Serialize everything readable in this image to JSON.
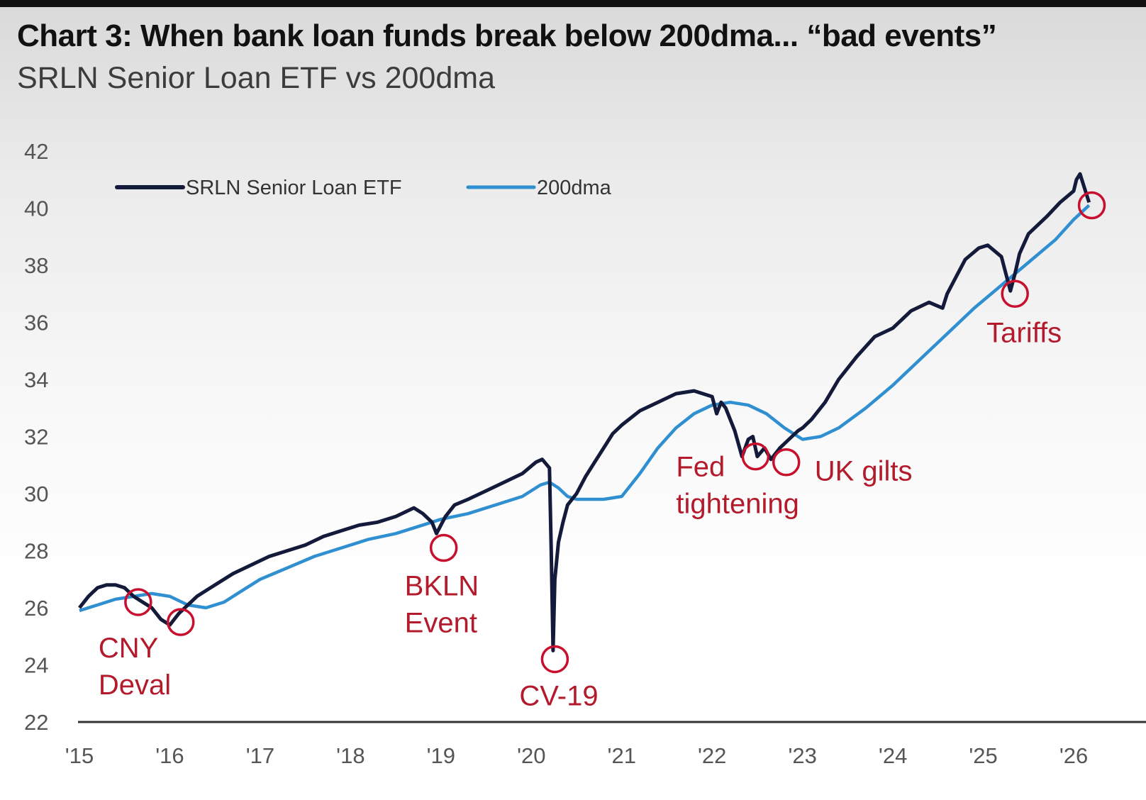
{
  "title": "Chart 3: When bank loan funds break below 200dma... “bad events”",
  "subtitle": "SRLN Senior Loan ETF vs 200dma",
  "colors": {
    "etf": "#141a3a",
    "dma": "#2f8fd0",
    "annotation": "#b31b2c",
    "circle": "#c8102e"
  },
  "chart_data": {
    "type": "line",
    "title": "Chart 3: When bank loan funds break below 200dma... “bad events”",
    "subtitle": "SRLN Senior Loan ETF vs 200dma",
    "ylim": [
      22,
      42
    ],
    "xlim": [
      2015,
      2026.8
    ],
    "yticks": [
      "22",
      "24",
      "26",
      "28",
      "30",
      "32",
      "34",
      "36",
      "38",
      "40",
      "42"
    ],
    "yticks_values": [
      22,
      24,
      26,
      28,
      30,
      32,
      34,
      36,
      38,
      40,
      42
    ],
    "xticks": [
      "'15",
      "'16",
      "'17",
      "'18",
      "'19",
      "'20",
      "'21",
      "'22",
      "'23",
      "'24",
      "'25",
      "'26"
    ],
    "xticks_values": [
      2015,
      2016,
      2017,
      2018,
      2019,
      2020,
      2021,
      2022,
      2023,
      2024,
      2025,
      2026
    ],
    "legend_position": "top-left",
    "grid": false,
    "series": [
      {
        "name": "SRLN Senior Loan ETF",
        "x": [
          2015.0,
          2015.1,
          2015.2,
          2015.3,
          2015.4,
          2015.5,
          2015.6,
          2015.7,
          2015.8,
          2015.9,
          2016.0,
          2016.05,
          2016.1,
          2016.2,
          2016.3,
          2016.4,
          2016.5,
          2016.7,
          2016.9,
          2017.1,
          2017.3,
          2017.5,
          2017.7,
          2017.9,
          2018.1,
          2018.3,
          2018.5,
          2018.7,
          2018.8,
          2018.9,
          2018.95,
          2019.0,
          2019.05,
          2019.15,
          2019.3,
          2019.5,
          2019.7,
          2019.9,
          2020.05,
          2020.12,
          2020.2,
          2020.22,
          2020.24,
          2020.26,
          2020.3,
          2020.35,
          2020.4,
          2020.5,
          2020.6,
          2020.7,
          2020.8,
          2020.9,
          2021.0,
          2021.2,
          2021.4,
          2021.6,
          2021.8,
          2022.0,
          2022.05,
          2022.1,
          2022.15,
          2022.25,
          2022.33,
          2022.4,
          2022.45,
          2022.5,
          2022.58,
          2022.65,
          2022.75,
          2022.85,
          2022.95,
          2023.0,
          2023.1,
          2023.25,
          2023.4,
          2023.6,
          2023.8,
          2024.0,
          2024.2,
          2024.4,
          2024.55,
          2024.6,
          2024.7,
          2024.8,
          2024.95,
          2025.05,
          2025.2,
          2025.3,
          2025.35,
          2025.4,
          2025.5,
          2025.7,
          2025.85,
          2026.0,
          2026.03,
          2026.07,
          2026.12,
          2026.17
        ],
        "y": [
          26.0,
          26.4,
          26.7,
          26.8,
          26.8,
          26.7,
          26.4,
          26.2,
          26.0,
          25.6,
          25.4,
          25.6,
          25.8,
          26.1,
          26.4,
          26.6,
          26.8,
          27.2,
          27.5,
          27.8,
          28.0,
          28.2,
          28.5,
          28.7,
          28.9,
          29.0,
          29.2,
          29.5,
          29.3,
          29.0,
          28.6,
          28.9,
          29.2,
          29.6,
          29.8,
          30.1,
          30.4,
          30.7,
          31.1,
          31.2,
          30.9,
          28.0,
          24.5,
          27.0,
          28.3,
          29.0,
          29.6,
          30.0,
          30.6,
          31.1,
          31.6,
          32.1,
          32.4,
          32.9,
          33.2,
          33.5,
          33.6,
          33.4,
          32.8,
          33.2,
          33.0,
          32.2,
          31.3,
          31.9,
          32.0,
          31.3,
          31.6,
          31.2,
          31.6,
          31.9,
          32.2,
          32.3,
          32.6,
          33.2,
          34.0,
          34.8,
          35.5,
          35.8,
          36.4,
          36.7,
          36.5,
          37.0,
          37.6,
          38.2,
          38.6,
          38.7,
          38.3,
          37.1,
          37.7,
          38.4,
          39.1,
          39.7,
          40.2,
          40.6,
          41.0,
          41.2,
          40.7,
          40.2
        ]
      },
      {
        "name": "200dma",
        "x": [
          2015.0,
          2015.2,
          2015.4,
          2015.6,
          2015.8,
          2016.0,
          2016.2,
          2016.4,
          2016.6,
          2016.8,
          2017.0,
          2017.3,
          2017.6,
          2017.9,
          2018.2,
          2018.5,
          2018.8,
          2019.0,
          2019.3,
          2019.6,
          2019.9,
          2020.1,
          2020.2,
          2020.3,
          2020.4,
          2020.5,
          2020.6,
          2020.8,
          2021.0,
          2021.2,
          2021.4,
          2021.6,
          2021.8,
          2022.0,
          2022.2,
          2022.4,
          2022.6,
          2022.8,
          2023.0,
          2023.2,
          2023.4,
          2023.7,
          2024.0,
          2024.3,
          2024.6,
          2024.9,
          2025.2,
          2025.5,
          2025.8,
          2026.0,
          2026.17
        ],
        "y": [
          25.9,
          26.1,
          26.3,
          26.4,
          26.5,
          26.4,
          26.1,
          26.0,
          26.2,
          26.6,
          27.0,
          27.4,
          27.8,
          28.1,
          28.4,
          28.6,
          28.9,
          29.1,
          29.3,
          29.6,
          29.9,
          30.3,
          30.4,
          30.2,
          29.9,
          29.8,
          29.8,
          29.8,
          29.9,
          30.7,
          31.6,
          32.3,
          32.8,
          33.1,
          33.2,
          33.1,
          32.8,
          32.3,
          31.9,
          32.0,
          32.3,
          33.0,
          33.8,
          34.7,
          35.6,
          36.5,
          37.3,
          38.1,
          38.9,
          39.6,
          40.1
        ]
      }
    ],
    "annotations": [
      {
        "label": "CNY",
        "label2": "Deval",
        "x": 2015.65,
        "y": 26.2
      },
      {
        "label": "",
        "label2": "",
        "x": 2016.12,
        "y": 25.5
      },
      {
        "label": "BKLN",
        "label2": "Event",
        "x": 2019.03,
        "y": 28.1
      },
      {
        "label": "CV-19",
        "label2": "",
        "x": 2020.26,
        "y": 24.2
      },
      {
        "label": "Fed",
        "label2": "tightening",
        "x": 2022.48,
        "y": 31.3
      },
      {
        "label": "UK gilts",
        "label2": "",
        "x": 2022.82,
        "y": 31.1
      },
      {
        "label": "Tariffs",
        "label2": "",
        "x": 2025.35,
        "y": 37.0
      },
      {
        "label": "",
        "label2": "",
        "x": 2026.2,
        "y": 40.1
      }
    ]
  }
}
